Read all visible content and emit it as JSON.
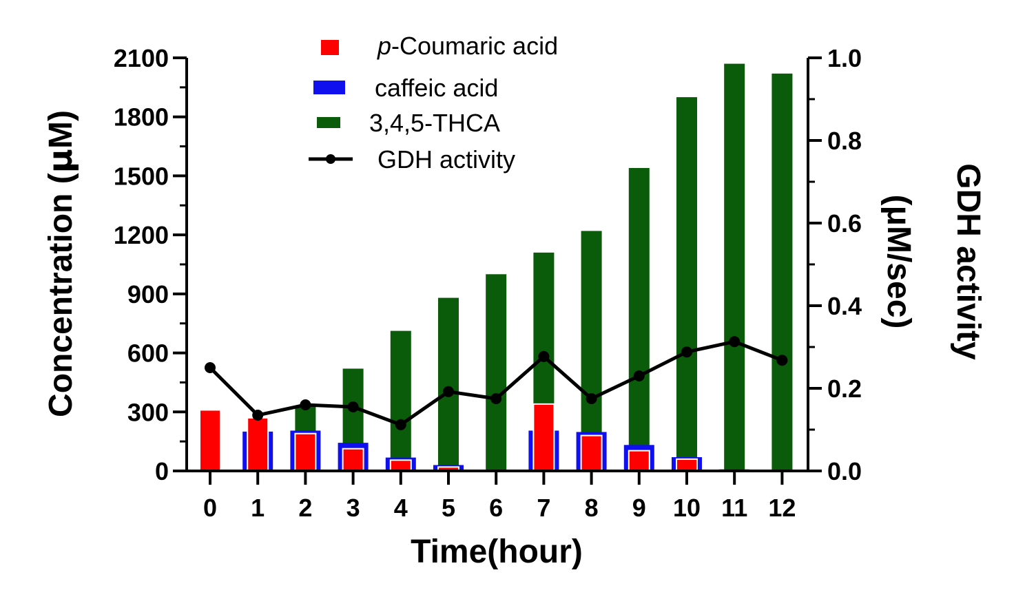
{
  "chart_data": {
    "type": "bar",
    "xlabel": "Time(hour)",
    "ylabel_left_pre": "Concentration (",
    "ylabel_left_mu": "μ",
    "ylabel_left_post": "M)",
    "ylabel_right_line1": "GDH activity",
    "ylabel_right_line2": "(μM/sec)",
    "categories": [
      "0",
      "1",
      "2",
      "3",
      "4",
      "5",
      "6",
      "7",
      "8",
      "9",
      "10",
      "11",
      "12"
    ],
    "ylim_left": [
      0,
      2100
    ],
    "yticks_left": [
      "0",
      "300",
      "600",
      "900",
      "1200",
      "1500",
      "1800",
      "2100"
    ],
    "ylim_right": [
      0,
      1.0
    ],
    "yticks_right": [
      "0.0",
      "0.2",
      "0.4",
      "0.6",
      "0.8",
      "1.0"
    ],
    "series": [
      {
        "name": "3,4,5-THCA",
        "kind": "bar",
        "axis": "left",
        "color": "#0a5b0a",
        "values": [
          0,
          0,
          330,
          520,
          712,
          880,
          1000,
          1110,
          1220,
          1540,
          1900,
          2070,
          2020
        ]
      },
      {
        "name": "caffeic acid",
        "kind": "bar",
        "axis": "left",
        "color": "#1010ee",
        "values": [
          0,
          200,
          205,
          143,
          68,
          30,
          0,
          205,
          198,
          132,
          70,
          8,
          0
        ]
      },
      {
        "name": "p-Coumaric acid",
        "name_italic": "p",
        "name_rest": "-Coumaric acid",
        "kind": "bar",
        "axis": "left",
        "color": "#ff0000",
        "values": [
          310,
          270,
          190,
          113,
          55,
          20,
          0,
          340,
          180,
          103,
          60,
          0,
          0
        ]
      },
      {
        "name": "GDH activity",
        "kind": "line",
        "axis": "right",
        "color": "#000000",
        "values": [
          0.25,
          0.135,
          0.16,
          0.155,
          0.112,
          0.192,
          0.175,
          0.277,
          0.175,
          0.23,
          0.288,
          0.313,
          0.268
        ]
      }
    ],
    "legend_position": "top-center",
    "grid": false
  }
}
